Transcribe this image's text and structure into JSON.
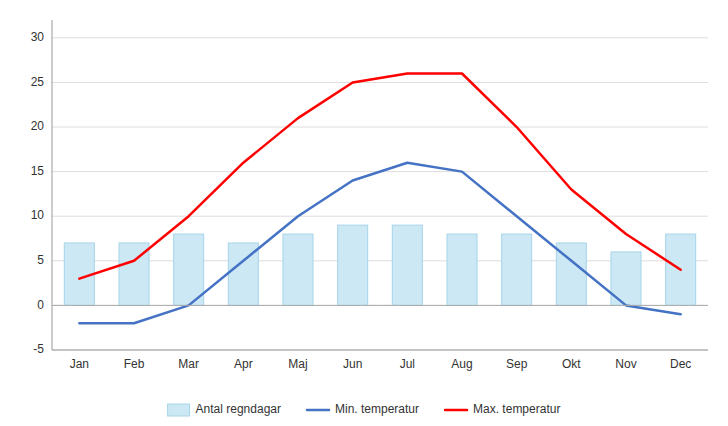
{
  "chart_data": {
    "type": "bar",
    "categories": [
      "Jan",
      "Feb",
      "Mar",
      "Apr",
      "Maj",
      "Jun",
      "Jul",
      "Aug",
      "Sep",
      "Okt",
      "Nov",
      "Dec"
    ],
    "series": [
      {
        "name": "Antal regndagar",
        "type": "bar",
        "color": "#cce8f4",
        "values": [
          7,
          7,
          8,
          7,
          8,
          9,
          9,
          8,
          8,
          7,
          6,
          8
        ]
      },
      {
        "name": "Min. temperatur",
        "type": "line",
        "color": "#4472c4",
        "values": [
          -2,
          -2,
          0,
          5,
          10,
          14,
          16,
          15,
          10,
          5,
          0,
          -1
        ]
      },
      {
        "name": "Max. temperatur",
        "type": "line",
        "color": "#ff0000",
        "values": [
          3,
          5,
          10,
          16,
          21,
          25,
          26,
          26,
          20,
          13,
          8,
          4
        ]
      }
    ],
    "ylim": [
      -5,
      32
    ],
    "yticks": [
      -5,
      0,
      5,
      10,
      15,
      20,
      25,
      30
    ],
    "grid": true,
    "legend": "bottom"
  }
}
